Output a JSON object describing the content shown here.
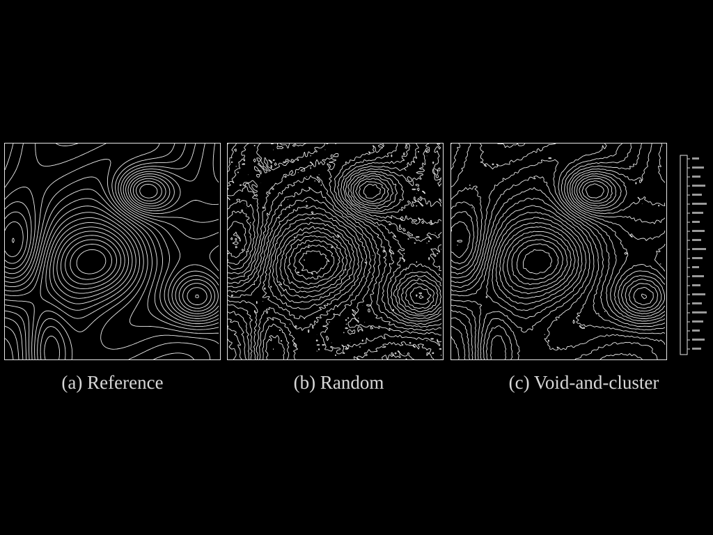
{
  "figure": {
    "panels": [
      {
        "id": "a",
        "caption": "(a) Reference",
        "noise": 0.0
      },
      {
        "id": "b",
        "caption": "(b) Random",
        "noise": 1.0
      },
      {
        "id": "c",
        "caption": "(c) Void-and-cluster",
        "noise": 0.45
      }
    ]
  },
  "colors": {
    "background": "#000000",
    "line": "#f2f2f2"
  }
}
